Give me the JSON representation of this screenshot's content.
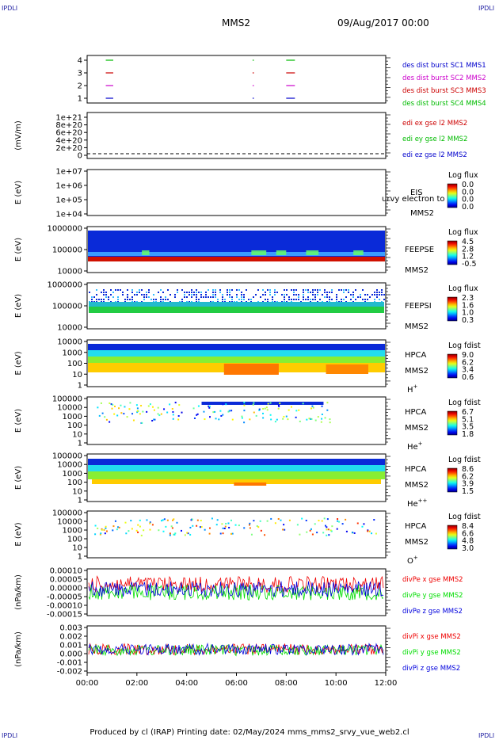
{
  "header": {
    "corner_label": "IPDLI",
    "spacecraft": "MMS2",
    "date_time": "09/Aug/2017 00:00"
  },
  "footer": {
    "text": "Produced by cl (IRAP)   Printing date: 02/May/2024   mms_mms2_srvy_vue_web2.cl"
  },
  "x_axis": {
    "ticks": [
      "00:00",
      "02:00",
      "04:00",
      "06:00",
      "08:00",
      "10:00",
      "12:00"
    ],
    "range_hours": [
      0,
      12
    ]
  },
  "chart_data": [
    {
      "type": "scatter",
      "id": "panel1",
      "y_ticks": [
        "4",
        "3",
        "2",
        "1"
      ],
      "ylim": [
        0.5,
        4.5
      ],
      "legend": [
        {
          "label": "des dist burst SC1 MMS1",
          "color": "#0000cc"
        },
        {
          "label": "des dist burst SC2 MMS2",
          "color": "#cc00cc"
        },
        {
          "label": "des dist burst SC3 MMS3",
          "color": "#cc0000"
        },
        {
          "label": "des dist burst SC4 MMS4",
          "color": "#00bb00"
        }
      ],
      "segments": [
        {
          "y": 4,
          "color": "#00bb00",
          "ranges": [
            [
              0.75,
              1.05
            ],
            [
              6.65,
              6.7
            ],
            [
              8.0,
              8.35
            ]
          ]
        },
        {
          "y": 3,
          "color": "#cc0000",
          "ranges": [
            [
              0.75,
              1.05
            ],
            [
              6.65,
              6.7
            ],
            [
              8.0,
              8.35
            ]
          ]
        },
        {
          "y": 2,
          "color": "#cc00cc",
          "ranges": [
            [
              0.75,
              1.05
            ],
            [
              6.65,
              6.7
            ],
            [
              8.0,
              8.35
            ]
          ]
        },
        {
          "y": 1,
          "color": "#0000cc",
          "ranges": [
            [
              0.75,
              1.05
            ],
            [
              6.65,
              6.7
            ],
            [
              8.0,
              8.35
            ]
          ]
        }
      ]
    },
    {
      "type": "line",
      "id": "panel2",
      "ylabel": "(mV/m)",
      "y_ticks": [
        "1e+21",
        "8e+20",
        "6e+20",
        "4e+20",
        "2e+20",
        "0"
      ],
      "ylim": [
        -1e+20,
        1.1e+21
      ],
      "legend": [
        {
          "label": "edi ex gse l2 MMS2",
          "color": "#cc0000"
        },
        {
          "label": "edi ey gse l2 MMS2",
          "color": "#00bb00"
        },
        {
          "label": "edi ez gse l2 MMS2",
          "color": "#0000cc"
        }
      ],
      "zero_line": true
    },
    {
      "type": "heatmap",
      "id": "panel3",
      "ylabel": "E (eV)",
      "y_ticks": [
        "1e+07",
        "1e+06",
        "1e+05",
        "1e+04"
      ],
      "right_labels": [
        "EIS",
        "MMS2"
      ],
      "overlay_text": "urvy electron to",
      "colorbar": {
        "title": "Log flux",
        "ticks": [
          "0.0",
          "0.0",
          "0.0",
          "0.0"
        ]
      },
      "empty": true
    },
    {
      "type": "heatmap",
      "id": "panel4",
      "ylabel": "E (eV)",
      "y_ticks": [
        "1000000",
        "100000",
        "10000"
      ],
      "right_labels": [
        "FEEPSE",
        "MMS2"
      ],
      "colorbar": {
        "title": "Log flux",
        "ticks": [
          "4.5",
          "2.8",
          "1.2",
          "-0.5"
        ]
      }
    },
    {
      "type": "heatmap",
      "id": "panel5",
      "ylabel": "E (eV)",
      "y_ticks": [
        "1000000",
        "100000",
        "10000"
      ],
      "right_labels": [
        "FEEPSI",
        "MMS2"
      ],
      "colorbar": {
        "title": "Log flux",
        "ticks": [
          "2.3",
          "1.6",
          "1.0",
          "0.3"
        ]
      }
    },
    {
      "type": "heatmap",
      "id": "panel6",
      "ylabel": "E (eV)",
      "y_ticks": [
        "10000",
        "1000",
        "100",
        "10",
        "1"
      ],
      "right_labels": [
        "HPCA",
        "MMS2",
        "H+"
      ],
      "colorbar": {
        "title": "Log fdist",
        "ticks": [
          "9.0",
          "6.2",
          "3.4",
          "0.6"
        ]
      }
    },
    {
      "type": "heatmap",
      "id": "panel7",
      "ylabel": "E (eV)",
      "y_ticks": [
        "100000",
        "10000",
        "1000",
        "100",
        "10",
        "1"
      ],
      "right_labels": [
        "HPCA",
        "MMS2",
        "He+"
      ],
      "colorbar": {
        "title": "Log fdist",
        "ticks": [
          "6.7",
          "5.1",
          "3.5",
          "1.8"
        ]
      }
    },
    {
      "type": "heatmap",
      "id": "panel8",
      "ylabel": "E (eV)",
      "y_ticks": [
        "100000",
        "10000",
        "1000",
        "100",
        "10",
        "1"
      ],
      "right_labels": [
        "HPCA",
        "MMS2",
        "He++"
      ],
      "colorbar": {
        "title": "Log fdist",
        "ticks": [
          "8.6",
          "6.2",
          "3.9",
          "1.5"
        ]
      }
    },
    {
      "type": "heatmap",
      "id": "panel9",
      "ylabel": "E (eV)",
      "y_ticks": [
        "100000",
        "10000",
        "1000",
        "100",
        "10",
        "1"
      ],
      "right_labels": [
        "HPCA",
        "MMS2",
        "O+"
      ],
      "colorbar": {
        "title": "Log fdist",
        "ticks": [
          "8.4",
          "6.6",
          "4.8",
          "3.0"
        ]
      }
    },
    {
      "type": "line",
      "id": "panel10",
      "ylabel": "(nPa/km)",
      "y_ticks": [
        "0.00010",
        "0.00005",
        "0.00000",
        "-0.00005",
        "-0.00010",
        "-0.00015"
      ],
      "ylim": [
        -0.00017,
        0.00011
      ],
      "legend": [
        {
          "label": "divPe x gse MMS2",
          "color": "#ee0000"
        },
        {
          "label": "divPe y gse MMS2",
          "color": "#00dd00"
        },
        {
          "label": "divPe z gse MMS2",
          "color": "#0000dd"
        }
      ]
    },
    {
      "type": "line",
      "id": "panel11",
      "ylabel": "(nPa/km)",
      "y_ticks": [
        "0.003",
        "0.002",
        "0.001",
        "0.000",
        "-0.001",
        "-0.002"
      ],
      "ylim": [
        -0.0028,
        0.0032
      ],
      "legend": [
        {
          "label": "divPi x gse MMS2",
          "color": "#ee0000"
        },
        {
          "label": "divPi y gse MMS2",
          "color": "#00dd00"
        },
        {
          "label": "divPi z gse MMS2",
          "color": "#0000dd"
        }
      ]
    }
  ]
}
